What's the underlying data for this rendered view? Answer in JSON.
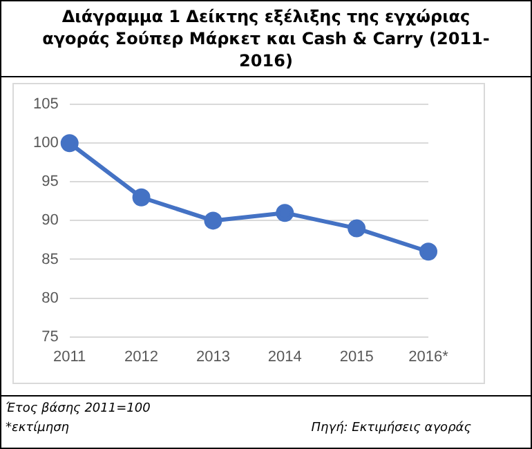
{
  "chart_data": {
    "type": "line",
    "title": "Διάγραμμα 1 Δείκτης εξέλιξης της εγχώριας αγοράς Σούπερ Μάρκετ και Cash & Carry (2011-2016)",
    "categories": [
      "2011",
      "2012",
      "2013",
      "2014",
      "2015",
      "2016*"
    ],
    "series": [
      {
        "color": "#4472c4",
        "values": [
          100,
          93,
          90,
          91,
          89,
          86
        ]
      }
    ],
    "ylim": [
      75,
      105
    ],
    "yticks": [
      75,
      80,
      85,
      90,
      95,
      100,
      105
    ],
    "grid": "y",
    "legend": false,
    "marker": "circle",
    "line_style": "solid",
    "annotations": [
      "Έτος βάσης 2011=100",
      "*εκτίμηση",
      "Πηγή: Εκτιμήσεις αγοράς"
    ]
  }
}
